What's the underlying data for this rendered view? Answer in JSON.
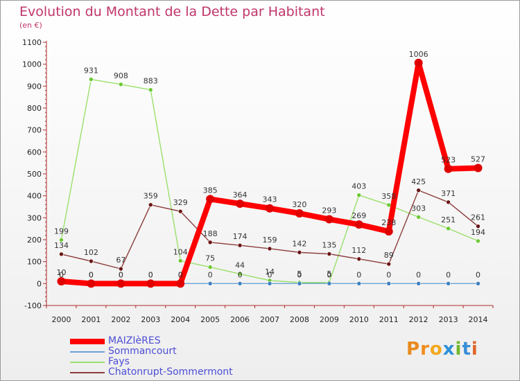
{
  "chart_data": {
    "type": "line",
    "title": "Evolution du Montant de la Dette par Habitant",
    "subtitle": "(en €)",
    "xlabel": "",
    "ylabel": "",
    "ylim": [
      -100,
      1100
    ],
    "yticks": [
      -100,
      0,
      100,
      200,
      300,
      400,
      500,
      600,
      700,
      800,
      900,
      1000,
      1100
    ],
    "grid": false,
    "legend_position": "bottom-left",
    "categories": [
      "2000",
      "2001",
      "2002",
      "2003",
      "2004",
      "2005",
      "2006",
      "2007",
      "2008",
      "2009",
      "2010",
      "2011",
      "2012",
      "2013",
      "2014"
    ],
    "series": [
      {
        "name": "MAIZIèRES",
        "color": "#ff0000",
        "marker": "#e00000",
        "values": [
          10,
          0,
          0,
          0,
          0,
          385,
          364,
          343,
          320,
          293,
          269,
          238,
          1006,
          523,
          527
        ]
      },
      {
        "name": "Sommancourt",
        "color": "#6aa3d5",
        "marker": "#3e7fc0",
        "values": [
          0,
          0,
          0,
          0,
          0,
          0,
          0,
          0,
          0,
          0,
          0,
          0,
          0,
          0,
          0
        ]
      },
      {
        "name": "Fays",
        "color": "#99e06a",
        "marker": "#6cc832",
        "values": [
          199,
          931,
          908,
          883,
          104,
          75,
          44,
          14,
          5,
          5,
          403,
          358,
          303,
          251,
          194
        ]
      },
      {
        "name": "Chatonrupt-Sommermont",
        "color": "#8c3b3b",
        "marker": "#6b1414",
        "values": [
          134,
          102,
          67,
          359,
          329,
          188,
          174,
          159,
          142,
          135,
          112,
          89,
          425,
          371,
          261
        ]
      }
    ]
  },
  "brand": {
    "text": "Proxiti",
    "letter_colors": [
      "#e98a1e",
      "#f08c1a",
      "#f2a81d",
      "#2f8fd8",
      "#72b829",
      "#3a8fd8",
      "#e0662a"
    ]
  }
}
